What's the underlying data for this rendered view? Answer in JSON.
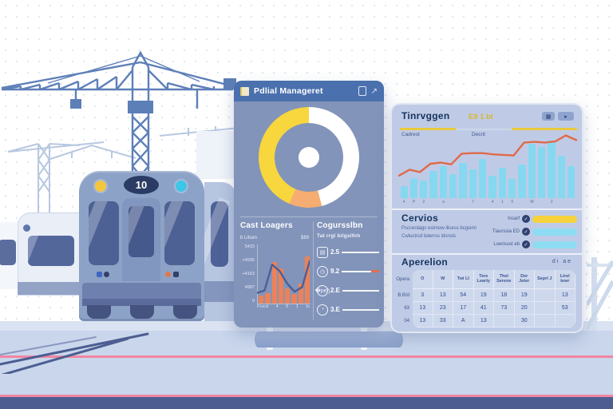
{
  "palette": {
    "accent_yellow": "#f7d63e",
    "accent_orange": "#ee8155",
    "accent_cyan": "#85d8f0",
    "accent_coral": "#e06a4a",
    "rail_pink": "#f286a2",
    "navy_text": "#16335f"
  },
  "scene": {
    "train_number": "10"
  },
  "left_panel": {
    "header": {
      "title": "Pdlial Manageret"
    },
    "donut": {
      "segments": [
        {
          "name": "segment-white",
          "color": "#ffffff",
          "deg": 165
        },
        {
          "name": "segment-orange",
          "color": "#f6ad72",
          "deg": 38
        },
        {
          "name": "segment-yellow",
          "color": "#f7d63e",
          "deg": 157
        }
      ]
    },
    "usage": {
      "title": "Cast Loagers",
      "sub_left": "b Litsen",
      "sub_right": "$89",
      "y_labels": [
        "5433",
        "+4935",
        "+4163",
        "4987",
        "0"
      ],
      "x_labels": [
        "Frucd",
        "4",
        "5",
        "1",
        "tu"
      ],
      "bars": [
        14,
        18,
        70,
        60,
        26,
        16,
        34,
        80
      ],
      "line": [
        18,
        22,
        66,
        55,
        34,
        20,
        28,
        72
      ],
      "bar_color": "#ee8155",
      "line_color": "#4d5f92"
    },
    "metrics": {
      "title": "Cogursslbn",
      "subtitle": "Tat rrgl bilgslfnh",
      "rows": [
        {
          "icon": "calendar-icon",
          "value": "2.5"
        },
        {
          "icon": "clock-icon",
          "value": "9.2"
        },
        {
          "icon": "wrench-icon",
          "value": "2.E"
        },
        {
          "icon": "gauge-icon",
          "value": "3.E"
        }
      ]
    }
  },
  "right_panel": {
    "traffic": {
      "title": "Tinrvggen",
      "badge": "E9 1 bl",
      "button_glyphs": [
        "▦",
        "▸"
      ],
      "label_left": "Cadrest",
      "label_mid": "Decrit",
      "bars": [
        20,
        34,
        30,
        46,
        54,
        41,
        60,
        48,
        66,
        38,
        52,
        33,
        57,
        92,
        86,
        97,
        72,
        54
      ],
      "line": [
        30,
        40,
        36,
        50,
        52,
        49,
        67,
        68,
        68,
        66,
        65,
        64,
        86,
        87,
        86,
        88,
        98,
        90
      ],
      "ticks": [
        "4",
        "P",
        "2",
        "",
        "a",
        "",
        "",
        "7",
        "",
        "4",
        "1",
        "0",
        "",
        "M",
        "",
        "2",
        "",
        ""
      ],
      "bar_color": "#85d8f0",
      "line_color": "#e06a4a"
    },
    "services": {
      "title": "Cervios",
      "lines": [
        "Psccerdags eslrnow illcess bcgsiml",
        "Cwluctrcd bderrss ldsnsls"
      ],
      "rows": [
        {
          "label": "Insarf",
          "pill_color": "#f6d33c"
        },
        {
          "label": "Tiaurssia ED",
          "pill_color": "#8edcf2"
        },
        {
          "label": "Loerisust eb",
          "pill_color": "#8edcf2"
        }
      ]
    },
    "operations": {
      "title": "Aperelion",
      "header_icons": "di  ae",
      "row_labels": [
        "Opera",
        "B.B/d",
        "63",
        "04"
      ],
      "columns": [
        "O",
        "W",
        "Twi LI",
        "Tere Learty",
        "Thel Serene",
        "Der Jeter",
        "Seprl J",
        "Ltrel tewr"
      ],
      "rows": [
        [
          "3",
          "13",
          "54",
          "19",
          "18",
          "19",
          "",
          "13"
        ],
        [
          "13",
          "23",
          "17",
          "41",
          "73",
          "20",
          "",
          "53"
        ],
        [
          "13",
          "33",
          "A",
          "13",
          "",
          "30",
          "",
          ""
        ]
      ]
    }
  }
}
